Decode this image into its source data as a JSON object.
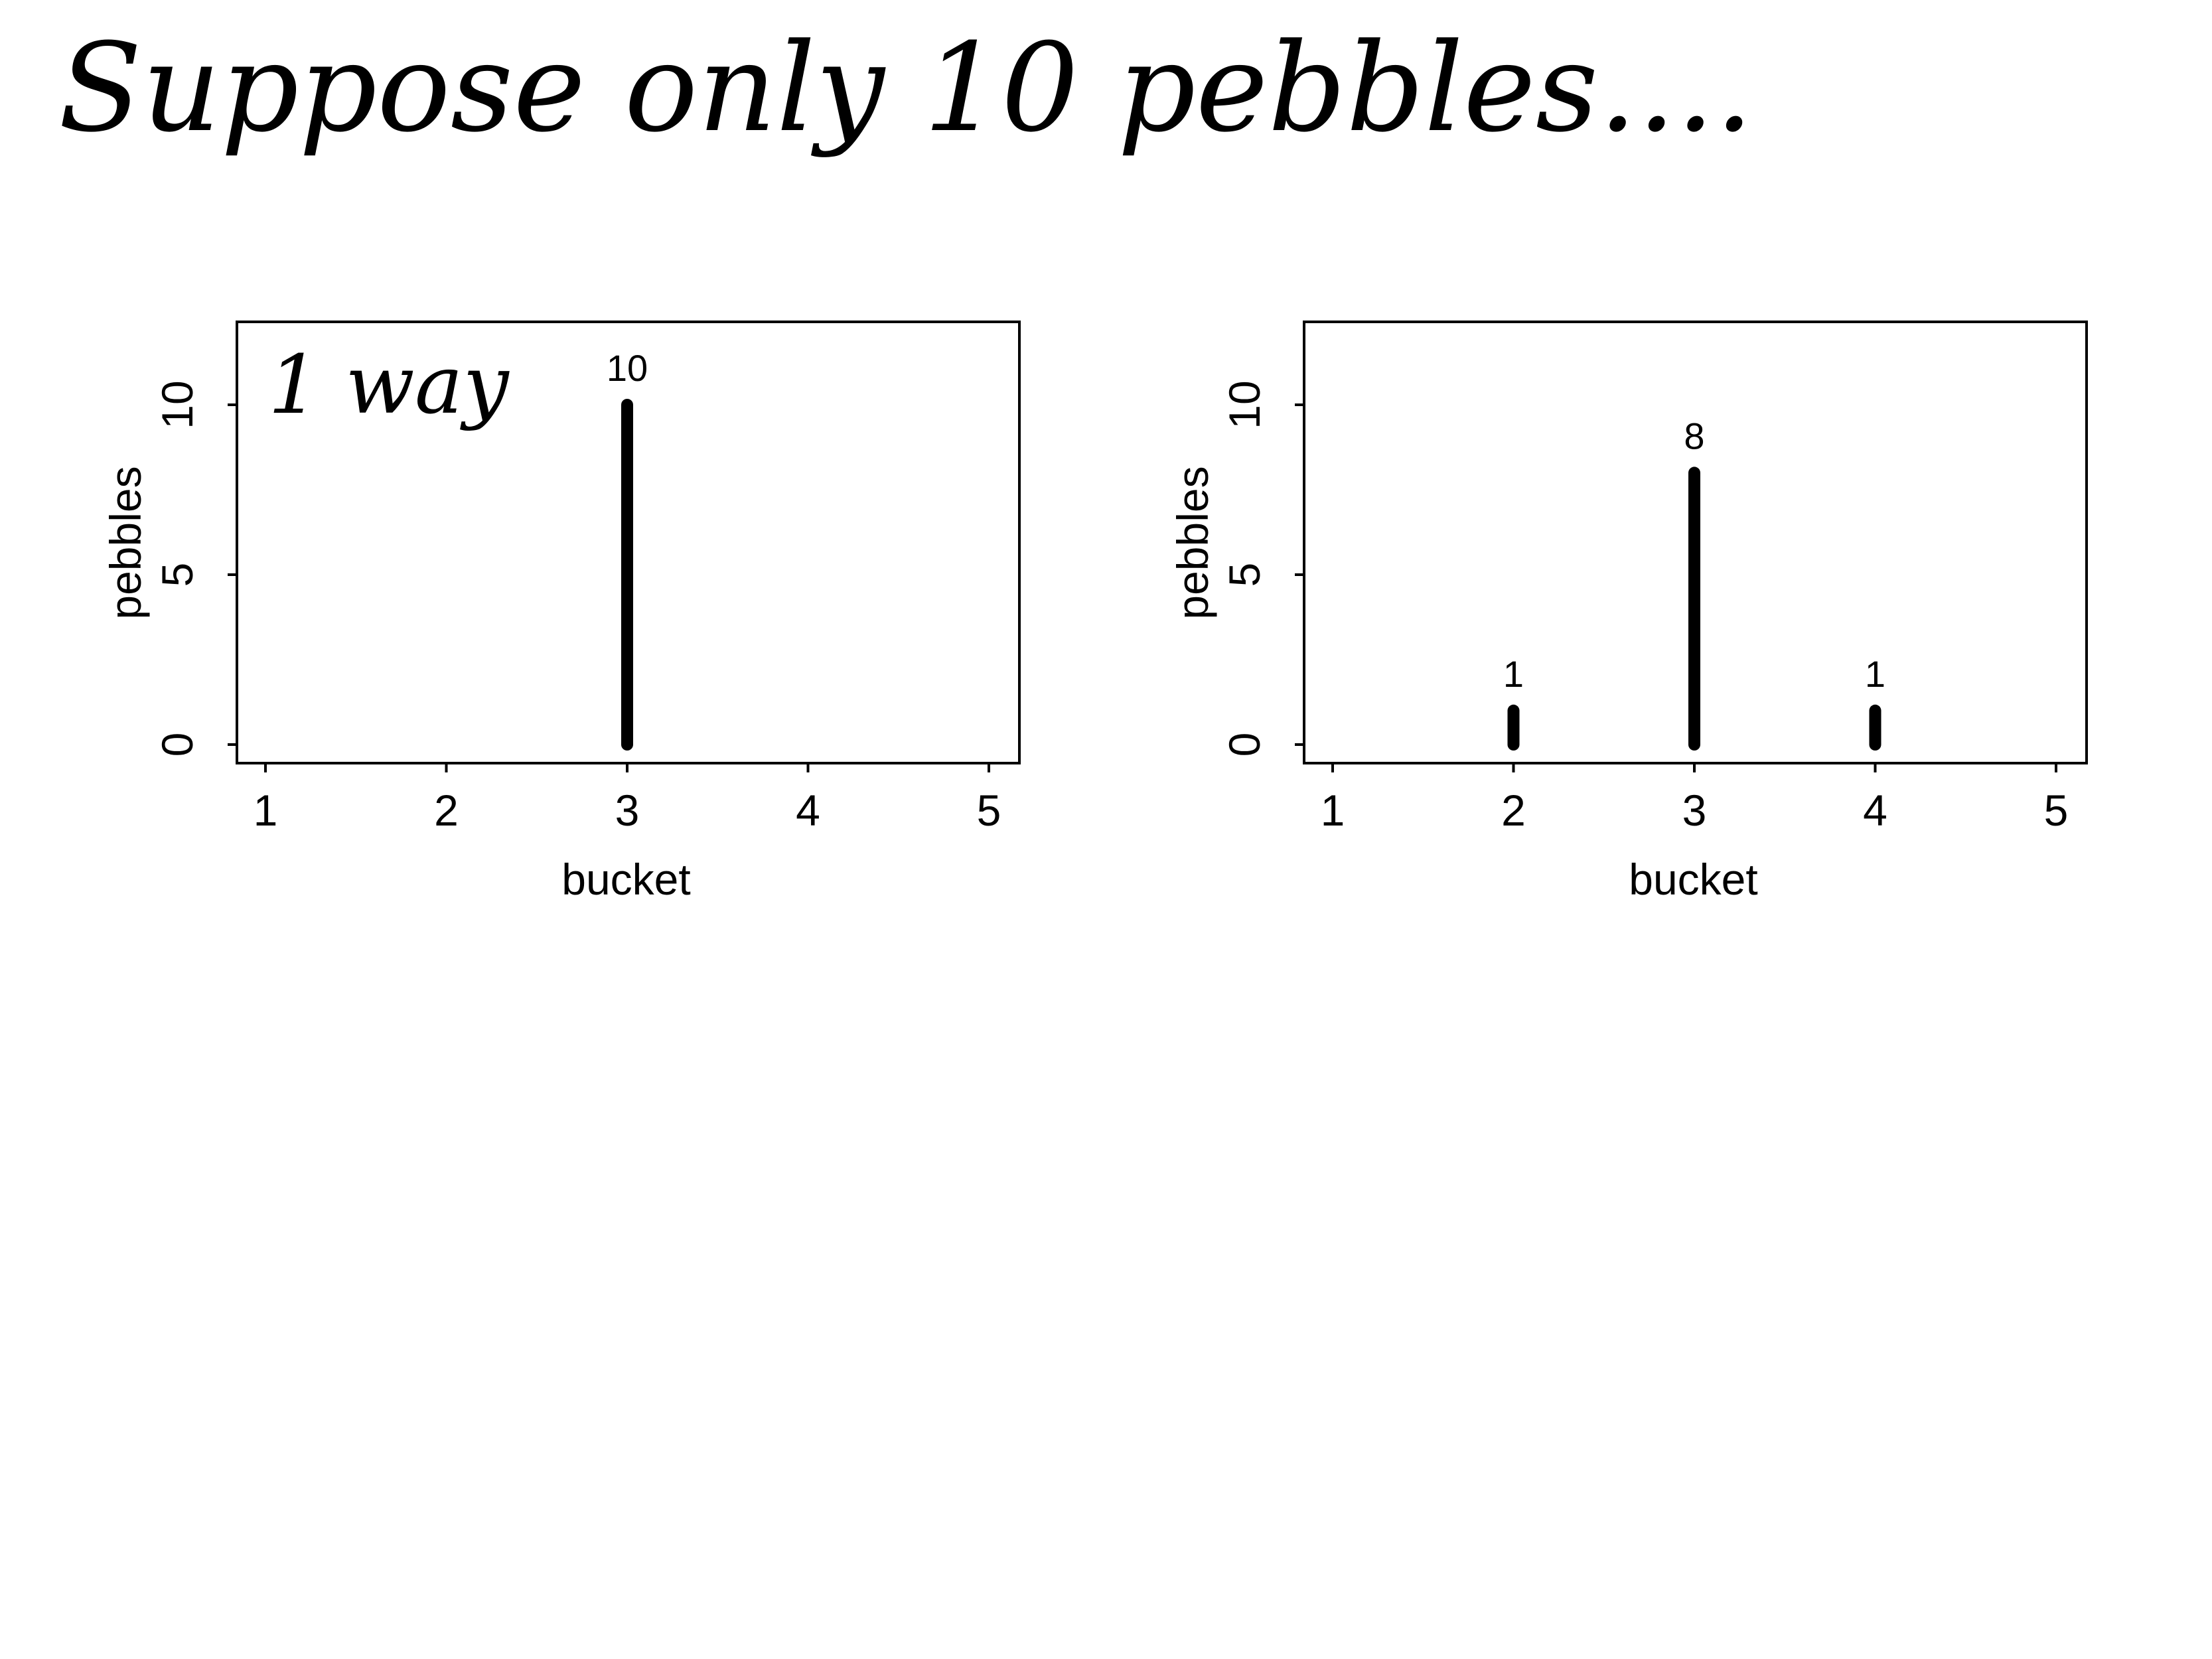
{
  "slide": {
    "title": "Suppose only 10 pebbles...."
  },
  "chart_data": [
    {
      "type": "bar",
      "x": [
        3
      ],
      "values": [
        10
      ],
      "value_labels": [
        "10"
      ],
      "xlabel": "bucket",
      "ylabel": "pebbles",
      "xlim": [
        1,
        5
      ],
      "ylim": [
        0,
        12.5
      ],
      "xticks": [
        "1",
        "2",
        "3",
        "4",
        "5"
      ],
      "yticks": [
        "0",
        "5",
        "10"
      ],
      "annotation": "1 way",
      "grid": false,
      "bar_color": "#000000"
    },
    {
      "type": "bar",
      "x": [
        2,
        3,
        4
      ],
      "values": [
        1,
        8,
        1
      ],
      "value_labels": [
        "1",
        "8",
        "1"
      ],
      "xlabel": "bucket",
      "ylabel": "pebbles",
      "xlim": [
        1,
        5
      ],
      "ylim": [
        0,
        12.5
      ],
      "xticks": [
        "1",
        "2",
        "3",
        "4",
        "5"
      ],
      "yticks": [
        "0",
        "5",
        "10"
      ],
      "grid": false,
      "bar_color": "#000000"
    }
  ]
}
